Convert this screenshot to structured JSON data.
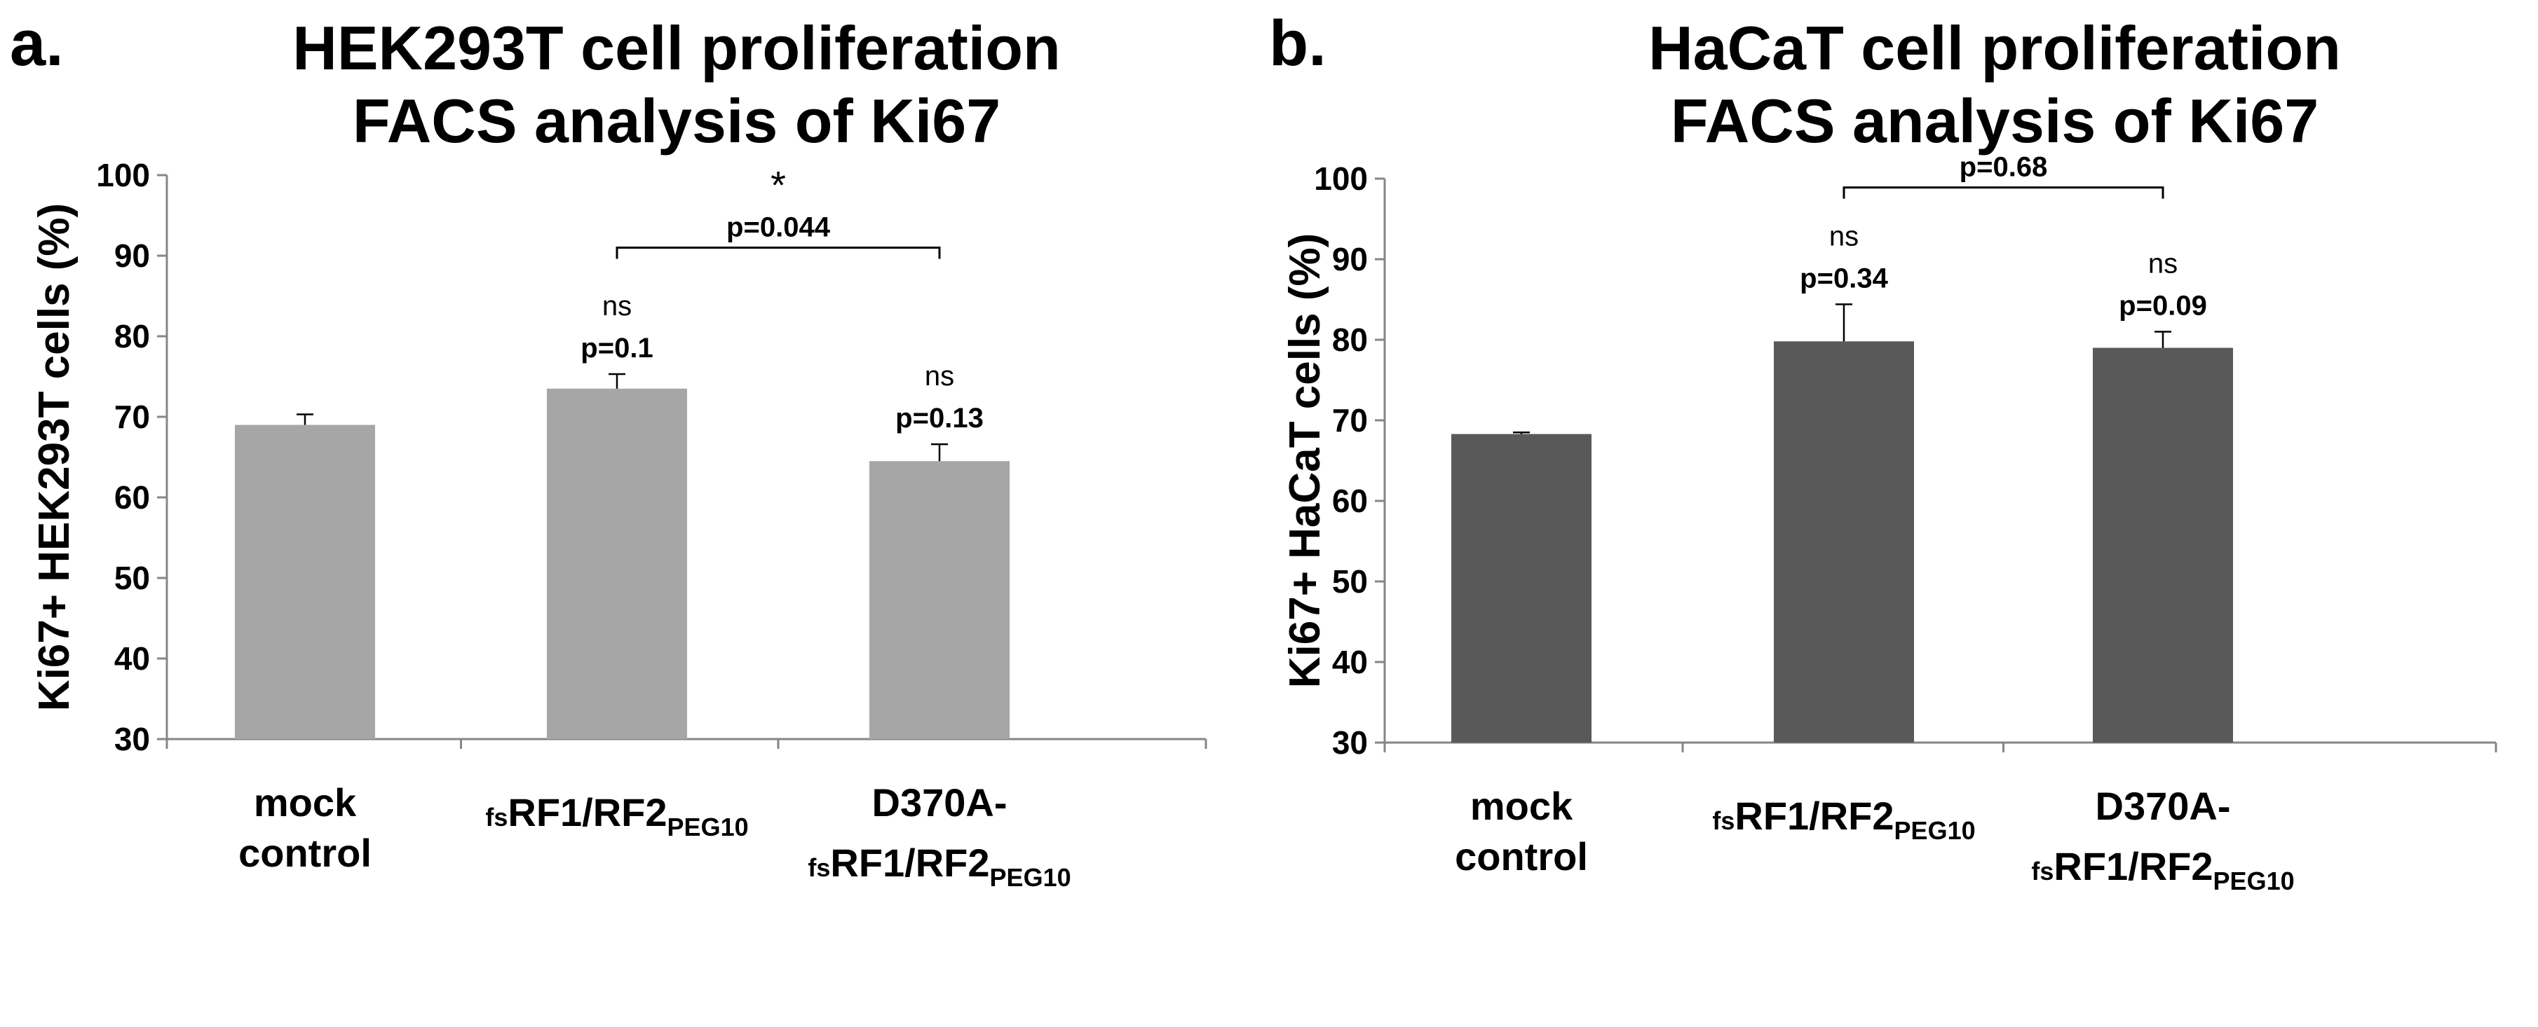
{
  "chart_data": [
    {
      "type": "bar",
      "panel_label": "a.",
      "title_lines": [
        "HEK293T cell proliferation",
        "FACS analysis of Ki67"
      ],
      "ylabel": "Ki67+ HEK293T cells (%)",
      "xlabel": "",
      "ylim": [
        30,
        100
      ],
      "yticks": [
        30,
        40,
        50,
        60,
        70,
        80,
        90,
        100
      ],
      "grid": false,
      "bar_color": "#a6a6a6",
      "categories": [
        {
          "lines": [
            {
              "parts": [
                {
                  "t": "mock"
                }
              ]
            },
            {
              "parts": [
                {
                  "t": "control"
                }
              ]
            }
          ]
        },
        {
          "lines": [
            {
              "parts": [
                {
                  "t": "fs",
                  "sub": true
                },
                {
                  "t": "RF1/RF2"
                },
                {
                  "t": "PEG10",
                  "sub": true
                }
              ]
            }
          ]
        },
        {
          "lines": [
            {
              "parts": [
                {
                  "t": "D370A-"
                }
              ]
            },
            {
              "parts": [
                {
                  "t": "fs",
                  "sub": true
                },
                {
                  "t": "RF1/RF2"
                },
                {
                  "t": "PEG10",
                  "sub": true
                }
              ]
            }
          ]
        }
      ],
      "values": [
        69.0,
        73.5,
        64.5
      ],
      "errors": [
        1.3,
        1.8,
        2.1
      ],
      "annotations": [
        {
          "bar": 1,
          "ns": "ns",
          "p": "p=0.1"
        },
        {
          "bar": 2,
          "ns": "ns",
          "p": "p=0.13"
        }
      ],
      "bracket": {
        "from": 1,
        "to": 2,
        "y": 91.0,
        "label": "p=0.044",
        "marker": "*"
      }
    },
    {
      "type": "bar",
      "panel_label": "b.",
      "title_lines": [
        "HaCaT cell proliferation",
        "FACS analysis of Ki67"
      ],
      "ylabel": "Ki67+ HaCaT cells (%)",
      "xlabel": "",
      "ylim": [
        30,
        100
      ],
      "yticks": [
        30,
        40,
        50,
        60,
        70,
        80,
        90,
        100
      ],
      "grid": false,
      "bar_color": "#595959",
      "categories": [
        {
          "lines": [
            {
              "parts": [
                {
                  "t": "mock"
                }
              ]
            },
            {
              "parts": [
                {
                  "t": "control"
                }
              ]
            }
          ]
        },
        {
          "lines": [
            {
              "parts": [
                {
                  "t": "fs",
                  "sub": true
                },
                {
                  "t": "RF1/RF2"
                },
                {
                  "t": "PEG10",
                  "sub": true
                }
              ]
            }
          ]
        },
        {
          "lines": [
            {
              "parts": [
                {
                  "t": "D370A-"
                }
              ]
            },
            {
              "parts": [
                {
                  "t": "fs",
                  "sub": true
                },
                {
                  "t": "RF1/RF2"
                },
                {
                  "t": "PEG10",
                  "sub": true
                }
              ]
            }
          ]
        }
      ],
      "values": [
        68.3,
        79.8,
        79.0
      ],
      "errors": [
        0.2,
        4.6,
        2.0
      ],
      "annotations": [
        {
          "bar": 1,
          "ns": "ns",
          "p": "p=0.34"
        },
        {
          "bar": 2,
          "ns": "ns",
          "p": "p=0.09"
        }
      ],
      "bracket": {
        "from": 1,
        "to": 2,
        "y": 98.9,
        "label": "p=0.68",
        "marker": ""
      }
    }
  ]
}
